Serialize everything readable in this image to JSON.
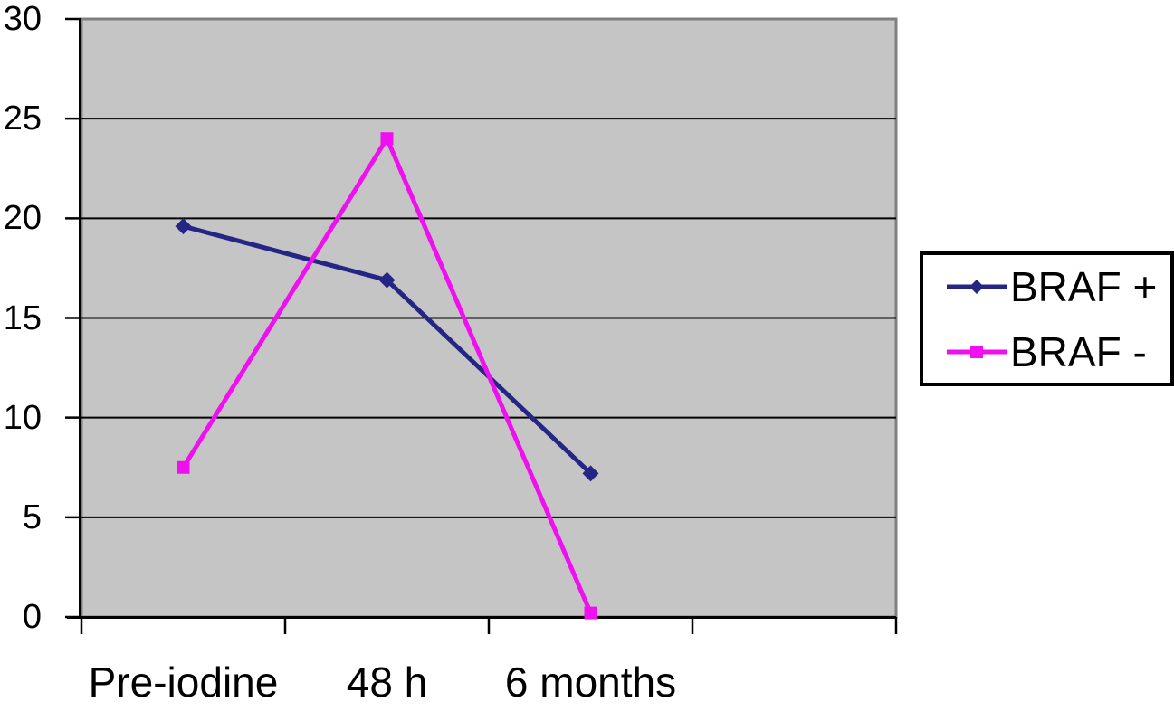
{
  "chart_data": {
    "type": "line",
    "title": "",
    "xlabel": "",
    "ylabel": "",
    "categories": [
      "Pre-iodine",
      "48 h",
      "6 months"
    ],
    "series": [
      {
        "name": "BRAF +",
        "values": [
          19.6,
          16.9,
          7.2
        ],
        "color": "#252585",
        "marker": "diamond"
      },
      {
        "name": "BRAF -",
        "values": [
          7.5,
          24,
          0.2
        ],
        "color": "#EE10EE",
        "marker": "square"
      }
    ],
    "ylim": [
      0,
      30
    ],
    "yticks": [
      0,
      5,
      10,
      15,
      20,
      25,
      30
    ],
    "grid": true,
    "legend_position": "right",
    "colors": {
      "plot_background": "#C5C5C5",
      "plot_border": "#7F7F7F",
      "gridline": "#000000",
      "axis": "#000000",
      "text": "#000000",
      "legend_border": "#000000",
      "legend_background": "#FFFFFF"
    }
  }
}
